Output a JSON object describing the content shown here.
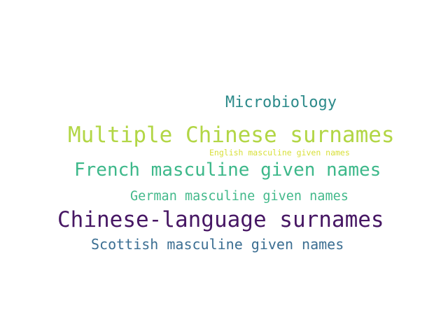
{
  "word_cloud": {
    "words": [
      {
        "text": "Microbiology",
        "color": "#2c8a8a"
      },
      {
        "text": "Multiple Chinese surnames",
        "color": "#b2d645"
      },
      {
        "text": "English masculine given names",
        "color": "#d8e03a"
      },
      {
        "text": "French masculine given names",
        "color": "#3db88a"
      },
      {
        "text": "German masculine given names",
        "color": "#43b98b"
      },
      {
        "text": "Chinese-language surnames",
        "color": "#471764"
      },
      {
        "text": "Scottish masculine given names",
        "color": "#3b6e92"
      }
    ]
  }
}
